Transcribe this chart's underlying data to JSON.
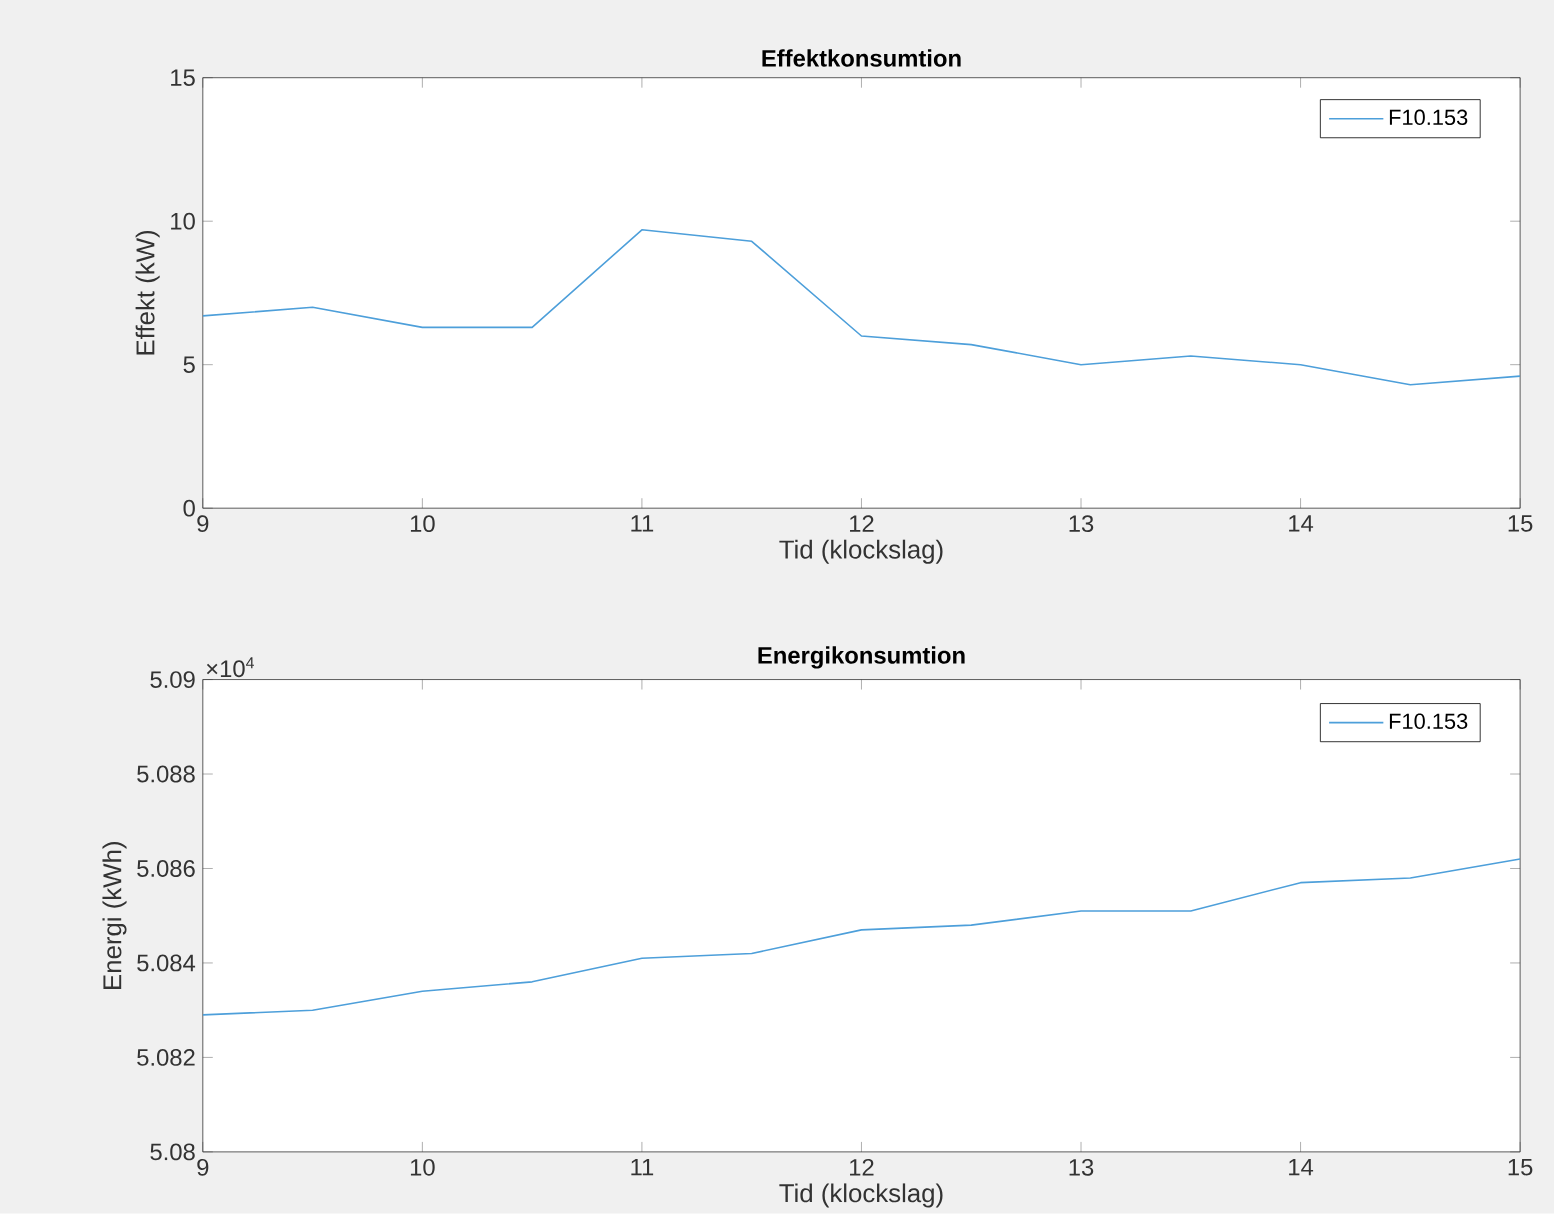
{
  "chart_data": [
    {
      "type": "line",
      "title": "Effektkonsumtion",
      "xlabel": "Tid (klockslag)",
      "ylabel": "Effekt (kW)",
      "x": [
        9,
        9.5,
        10,
        10.5,
        11,
        11.5,
        12,
        12.5,
        13,
        13.5,
        14,
        14.5,
        15
      ],
      "series": [
        {
          "name": "F10.153",
          "color": "#4d9fda",
          "values": [
            6.7,
            7.0,
            6.3,
            6.3,
            9.7,
            9.3,
            6.0,
            5.7,
            5.0,
            5.3,
            5.0,
            4.3,
            4.6
          ]
        }
      ],
      "xlim": [
        9,
        15
      ],
      "ylim": [
        0,
        15
      ],
      "xticks": [
        9,
        10,
        11,
        12,
        13,
        14,
        15
      ],
      "yticks": [
        0,
        5,
        10,
        15
      ],
      "legend": "top right",
      "grid": false
    },
    {
      "type": "line",
      "title": "Energikonsumtion",
      "xlabel": "Tid (klockslag)",
      "ylabel": "Energi (kWh)",
      "x": [
        9,
        9.5,
        10,
        10.5,
        11,
        11.5,
        12,
        12.5,
        13,
        13.5,
        14,
        14.5,
        15
      ],
      "series": [
        {
          "name": "F10.153",
          "color": "#4d9fda",
          "values": [
            5.0829,
            5.083,
            5.0834,
            5.0836,
            5.0841,
            5.0842,
            5.0847,
            5.0848,
            5.0851,
            5.0851,
            5.0857,
            5.0858,
            5.0862
          ]
        }
      ],
      "xlim": [
        9,
        15
      ],
      "ylim": [
        5.08,
        5.09
      ],
      "xticks": [
        9,
        10,
        11,
        12,
        13,
        14,
        15
      ],
      "yticks": [
        5.08,
        5.082,
        5.084,
        5.086,
        5.088,
        5.09
      ],
      "annotations": [
        "×10$^{4}$"
      ],
      "legend": "top right",
      "grid": false
    }
  ]
}
